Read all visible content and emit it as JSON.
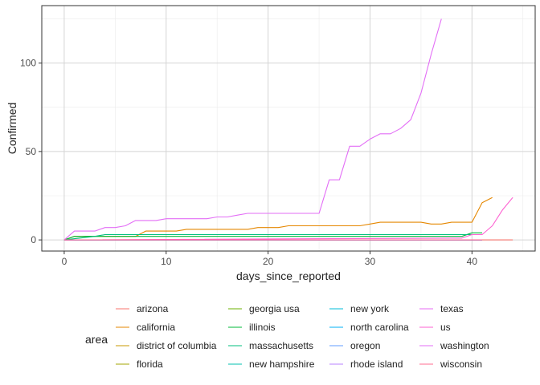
{
  "chart_data": {
    "type": "line",
    "xlabel": "days_since_reported",
    "ylabel": "Confirmed",
    "xlim": [
      -2.2,
      46.2
    ],
    "ylim": [
      -6.3,
      132.5
    ],
    "x_ticks": [
      0,
      10,
      20,
      30,
      40
    ],
    "y_ticks": [
      0,
      50,
      100
    ],
    "grid": true,
    "legend_title": "area",
    "legend_position": "bottom",
    "series": [
      {
        "name": "arizona",
        "color": "#F8766D",
        "x": [
          0,
          44
        ],
        "y": [
          0,
          0
        ]
      },
      {
        "name": "california",
        "color": "#E58700",
        "x": [
          0,
          1,
          2,
          3,
          4,
          5,
          6,
          7,
          8,
          9,
          10,
          11,
          12,
          13,
          14,
          15,
          16,
          17,
          18,
          19,
          20,
          21,
          22,
          23,
          24,
          25,
          26,
          27,
          28,
          29,
          30,
          31,
          32,
          33,
          34,
          35,
          36,
          37,
          38,
          39,
          40,
          41,
          42
        ],
        "y": [
          0,
          2,
          2,
          2,
          2,
          2,
          2,
          2,
          5,
          5,
          5,
          5,
          6,
          6,
          6,
          6,
          6,
          6,
          6,
          7,
          7,
          7,
          8,
          8,
          8,
          8,
          8,
          8,
          8,
          8,
          9,
          10,
          10,
          10,
          10,
          10,
          9,
          9,
          10,
          10,
          10,
          21,
          24
        ]
      },
      {
        "name": "district of columbia",
        "color": "#C99800",
        "x": [
          0,
          41
        ],
        "y": [
          0,
          0
        ]
      },
      {
        "name": "florida",
        "color": "#A3A500",
        "x": [
          0,
          41
        ],
        "y": [
          0,
          0
        ]
      },
      {
        "name": "georgia usa",
        "color": "#6BB100",
        "x": [
          0,
          41
        ],
        "y": [
          0,
          0
        ]
      },
      {
        "name": "illinois",
        "color": "#00BA38",
        "x": [
          0,
          1,
          9,
          10,
          26,
          27,
          39,
          40,
          41
        ],
        "y": [
          0,
          2,
          2,
          2,
          2,
          2,
          2,
          4,
          4
        ]
      },
      {
        "name": "massachusetts",
        "color": "#00BF7D",
        "x": [
          0,
          3,
          4,
          5,
          6,
          39,
          40,
          41
        ],
        "y": [
          0,
          2,
          3,
          3,
          3,
          3,
          3,
          3
        ]
      },
      {
        "name": "new hampshire",
        "color": "#00C0AF",
        "x": [
          0,
          41
        ],
        "y": [
          0,
          0
        ]
      },
      {
        "name": "new york",
        "color": "#00BCD8",
        "x": [
          0,
          41
        ],
        "y": [
          0,
          0
        ]
      },
      {
        "name": "north carolina",
        "color": "#00B0F6",
        "x": [
          0,
          41
        ],
        "y": [
          0,
          0
        ]
      },
      {
        "name": "oregon",
        "color": "#619CFF",
        "x": [
          0,
          41
        ],
        "y": [
          0,
          0
        ]
      },
      {
        "name": "rhode island",
        "color": "#B983FF",
        "x": [
          0,
          41
        ],
        "y": [
          0,
          0
        ]
      },
      {
        "name": "texas",
        "color": "#E76BF3",
        "x": [
          0,
          41
        ],
        "y": [
          0,
          0
        ]
      },
      {
        "name": "us",
        "color": "#FD61D1",
        "x": [
          0,
          38,
          39,
          40,
          41,
          42,
          43,
          44
        ],
        "y": [
          0,
          1,
          1,
          3,
          3,
          8,
          17,
          24
        ]
      },
      {
        "name": "washington",
        "color": "#E36EF6",
        "x": [
          0,
          1,
          2,
          3,
          4,
          5,
          6,
          7,
          8,
          9,
          10,
          11,
          12,
          13,
          14,
          15,
          16,
          17,
          18,
          19,
          20,
          21,
          22,
          23,
          24,
          25,
          26,
          27,
          28,
          29,
          30,
          31,
          32,
          33,
          34,
          35,
          36,
          37
        ],
        "y": [
          0,
          5,
          5,
          5,
          7,
          7,
          8,
          11,
          11,
          11,
          12,
          12,
          12,
          12,
          12,
          13,
          13,
          14,
          15,
          15,
          15,
          15,
          15,
          15,
          15,
          15,
          34,
          34,
          53,
          53,
          57,
          60,
          60,
          63,
          68,
          83,
          105,
          125
        ]
      },
      {
        "name": "wisconsin",
        "color": "#FF6C91",
        "x": [
          0,
          41
        ],
        "y": [
          0,
          0
        ]
      }
    ]
  }
}
